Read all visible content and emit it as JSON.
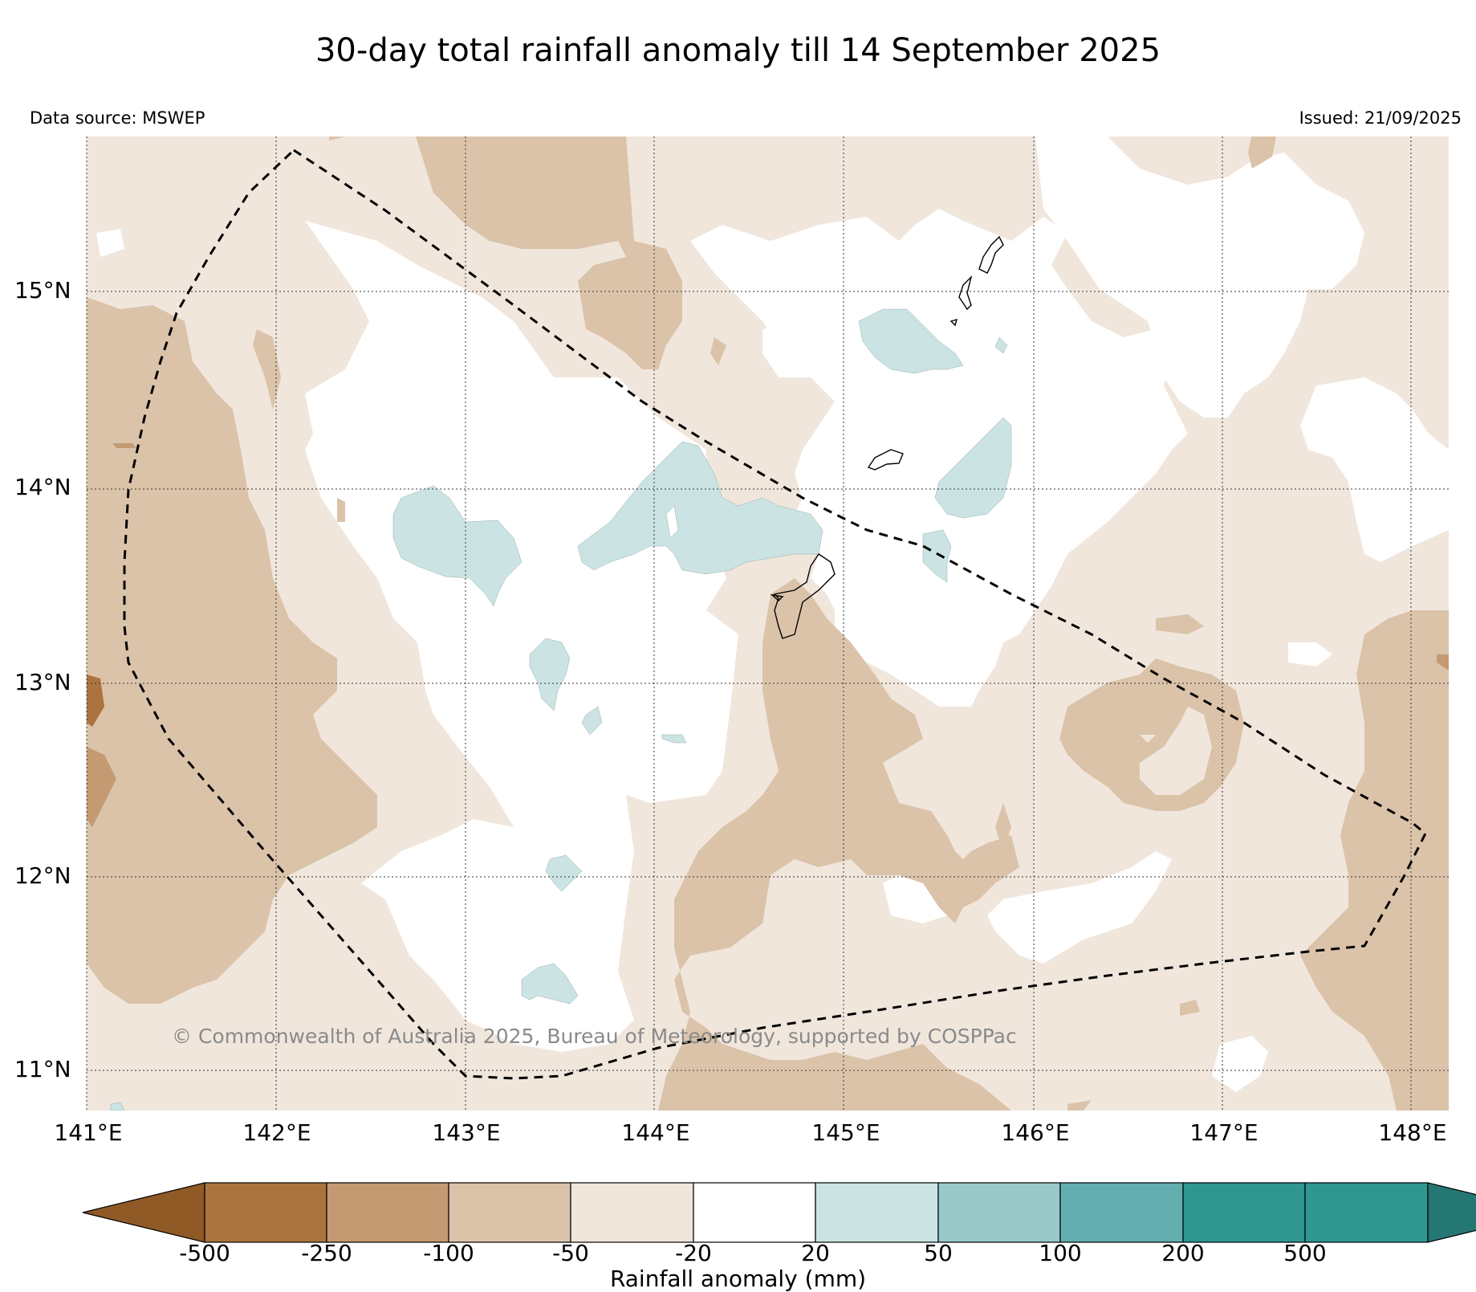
{
  "title": "30-day total rainfall anomaly till 14 September 2025",
  "data_source": "Data source: MSWEP",
  "issued": "Issued: 21/09/2025",
  "credit": "© Commonwealth of Australia 2025, Bureau of Meteorology, supported by COSPPac",
  "map": {
    "lat_labels": [
      "15°N",
      "14°N",
      "13°N",
      "12°N",
      "11°N"
    ],
    "lon_labels": [
      "141°E",
      "142°E",
      "143°E",
      "144°E",
      "145°E",
      "146°E",
      "147°E",
      "148°E"
    ]
  },
  "colorbar": {
    "label": "Rainfall anomaly (mm)",
    "ticks": [
      "-500",
      "-250",
      "-100",
      "-50",
      "-20",
      "20",
      "50",
      "100",
      "200",
      "500"
    ],
    "colors": {
      "below_min": "#8f5a26",
      "b1": "#ab743f",
      "b2": "#c39a72",
      "b3": "#dbc3aa",
      "b4": "#f0e6dc",
      "b5": "#ffffff",
      "b6": "#cbe4e3",
      "b7": "#99c9c9",
      "b8": "#63afb0",
      "b9": "#2f9790",
      "above_max": "#257774"
    }
  }
}
